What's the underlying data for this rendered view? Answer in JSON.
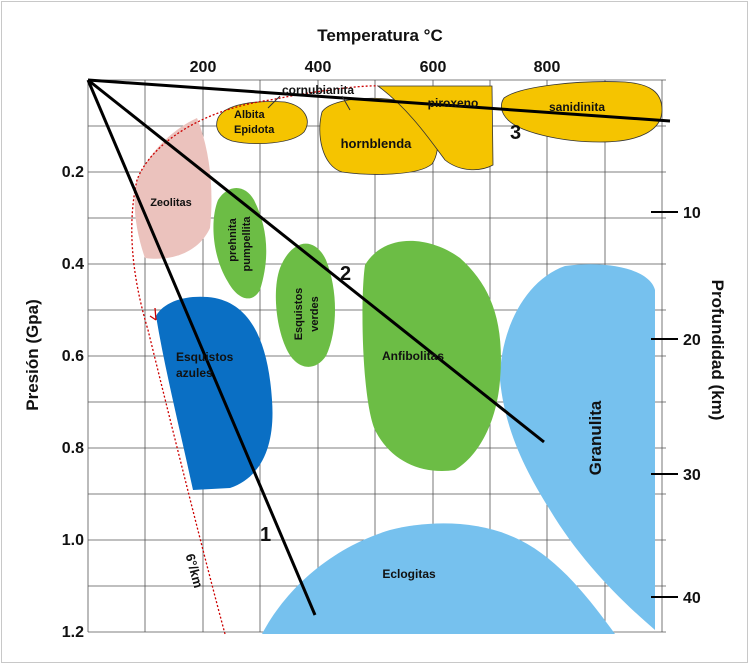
{
  "axes": {
    "x_title": "Temperatura °C",
    "x_ticks": [
      "200",
      "400",
      "600",
      "800"
    ],
    "y_title": "Presión (Gpa)",
    "y_ticks": [
      "0.2",
      "0.4",
      "0.6",
      "0.8",
      "1.0",
      "1.2"
    ],
    "depth_title": "Profundidad (km)",
    "depth_ticks": [
      "10",
      "20",
      "30",
      "40"
    ]
  },
  "facies": {
    "cornubianita": "cornubianita",
    "albita": "Albita",
    "epidota": "Epidota",
    "hornblenda": "hornblenda",
    "piroxeno": "piroxeno",
    "sanidinita": "sanidinita",
    "zeolitas": "Zeolitas",
    "prehnita": "prehnita",
    "pumpellita": "pumpellita",
    "esquistos_verdes_1": "Esquistos",
    "esquistos_verdes_2": "verdes",
    "esquistos_azules_1": "Esquistos",
    "esquistos_azules_2": "azules",
    "anfibolitas": "Anfibolitas",
    "granulita": "Granulita",
    "eclogitas": "Eclogitas"
  },
  "gradients": {
    "line_1": "1",
    "line_2": "2",
    "line_3": "3",
    "geotherm_label": "6°/km"
  },
  "colors": {
    "yellow": "#f5c400",
    "pink": "#ebc2bd",
    "green": "#6cbd45",
    "blue": "#0a6fc4",
    "lightblue": "#76c1ee",
    "red_dotted": "#cc0000"
  }
}
